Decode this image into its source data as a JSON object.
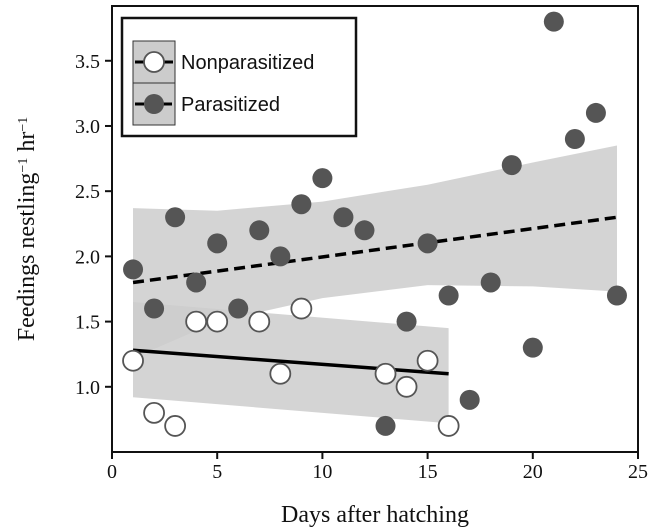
{
  "chart_data": {
    "type": "scatter",
    "title": "",
    "xlabel": "Days after hatching",
    "ylabel_main": "Feedings nestling",
    "ylabel_exp1": "−1",
    "ylabel_mid": " hr",
    "ylabel_exp2": "−1",
    "xlim": [
      0,
      25
    ],
    "ylim": [
      0.5,
      3.92
    ],
    "x_ticks": [
      0,
      5,
      10,
      15,
      20,
      25
    ],
    "y_ticks": [
      1.0,
      1.5,
      2.0,
      2.5,
      3.0,
      3.5
    ],
    "x_tick_labels": [
      "0",
      "5",
      "10",
      "15",
      "20",
      "25"
    ],
    "y_tick_labels": [
      "1.0",
      "1.5",
      "2.0",
      "2.5",
      "3.0",
      "3.5"
    ],
    "grid": false,
    "legend_position": "top-left",
    "colors": {
      "nonparasitized_fill": "#ffffff",
      "nonparasitized_stroke": "#555555",
      "parasitized_fill": "#555555",
      "confidence_band": "#cccccc",
      "line": "#000000"
    },
    "series": [
      {
        "name": "Nonparasitized",
        "marker": "open-circle",
        "line_style": "solid",
        "points": [
          {
            "x": 1,
            "y": 1.2
          },
          {
            "x": 2,
            "y": 0.8
          },
          {
            "x": 3,
            "y": 0.7
          },
          {
            "x": 4,
            "y": 1.5
          },
          {
            "x": 5,
            "y": 1.5
          },
          {
            "x": 7,
            "y": 1.5
          },
          {
            "x": 8,
            "y": 1.1
          },
          {
            "x": 9,
            "y": 1.6
          },
          {
            "x": 13,
            "y": 1.1
          },
          {
            "x": 14,
            "y": 1.0
          },
          {
            "x": 15,
            "y": 1.2
          },
          {
            "x": 16,
            "y": 0.7
          }
        ],
        "fit": {
          "x": [
            1,
            16
          ],
          "y": [
            1.28,
            1.1
          ]
        },
        "band": {
          "x": [
            1,
            16
          ],
          "upper": [
            1.65,
            1.45
          ],
          "lower": [
            0.92,
            0.72
          ]
        }
      },
      {
        "name": "Parasitized",
        "marker": "filled-circle",
        "line_style": "dashed",
        "points": [
          {
            "x": 1,
            "y": 1.9
          },
          {
            "x": 2,
            "y": 1.6
          },
          {
            "x": 3,
            "y": 2.3
          },
          {
            "x": 4,
            "y": 1.8
          },
          {
            "x": 5,
            "y": 2.1
          },
          {
            "x": 6,
            "y": 1.6
          },
          {
            "x": 7,
            "y": 2.2
          },
          {
            "x": 8,
            "y": 2.0
          },
          {
            "x": 9,
            "y": 2.4
          },
          {
            "x": 10,
            "y": 2.6
          },
          {
            "x": 11,
            "y": 2.3
          },
          {
            "x": 12,
            "y": 2.2
          },
          {
            "x": 13,
            "y": 0.7
          },
          {
            "x": 14,
            "y": 1.5
          },
          {
            "x": 15,
            "y": 2.1
          },
          {
            "x": 16,
            "y": 1.7
          },
          {
            "x": 17,
            "y": 0.9
          },
          {
            "x": 18,
            "y": 1.8
          },
          {
            "x": 19,
            "y": 2.7
          },
          {
            "x": 20,
            "y": 1.3
          },
          {
            "x": 21,
            "y": 3.8
          },
          {
            "x": 22,
            "y": 2.9
          },
          {
            "x": 23,
            "y": 3.1
          },
          {
            "x": 24,
            "y": 1.7
          }
        ],
        "fit": {
          "x": [
            1,
            24
          ],
          "y": [
            1.8,
            2.3
          ]
        },
        "band": {
          "x": [
            1,
            5,
            10,
            15,
            20,
            24
          ],
          "upper": [
            2.37,
            2.35,
            2.42,
            2.55,
            2.72,
            2.85
          ],
          "lower": [
            1.22,
            1.5,
            1.68,
            1.78,
            1.77,
            1.73
          ]
        }
      }
    ]
  }
}
